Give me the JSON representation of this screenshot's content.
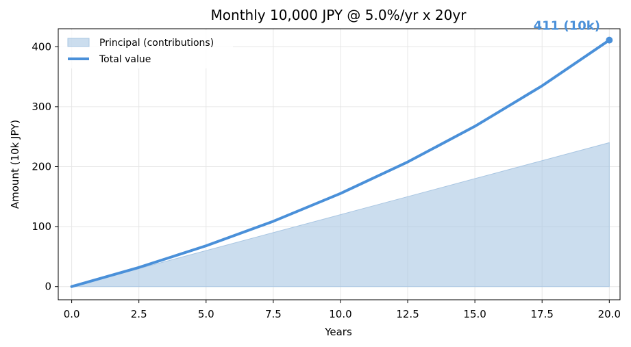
{
  "chart_data": {
    "type": "area",
    "title": "Monthly 10,000 JPY @ 5.0%/yr x 20yr",
    "xlabel": "Years",
    "ylabel": "Amount (10k JPY)",
    "xlim": [
      -0.5,
      20.4
    ],
    "ylim": [
      -22,
      430
    ],
    "xticks": [
      0.0,
      2.5,
      5.0,
      7.5,
      10.0,
      12.5,
      15.0,
      17.5,
      20.0
    ],
    "xtick_labels": [
      "0.0",
      "2.5",
      "5.0",
      "7.5",
      "10.0",
      "12.5",
      "15.0",
      "17.5",
      "20.0"
    ],
    "yticks": [
      0,
      100,
      200,
      300,
      400
    ],
    "ytick_labels": [
      "0",
      "100",
      "200",
      "300",
      "400"
    ],
    "grid": true,
    "legend_position": "top-left",
    "series": [
      {
        "name": "Principal (contributions)",
        "kind": "area",
        "color": "#a9c6e2",
        "x": [
          0,
          2.5,
          5,
          7.5,
          10,
          12.5,
          15,
          17.5,
          20
        ],
        "values": [
          0,
          30,
          60,
          90,
          120,
          150,
          180,
          210,
          240
        ]
      },
      {
        "name": "Total value",
        "kind": "line",
        "color": "#4a90d9",
        "x": [
          0,
          2.5,
          5,
          7.5,
          10,
          12.5,
          15,
          17.5,
          20
        ],
        "values": [
          0,
          31.9,
          68.0,
          108.9,
          155.3,
          207.8,
          267.3,
          334.8,
          411.0
        ]
      }
    ],
    "annotations": [
      {
        "text": "411 (10k)",
        "x": 20,
        "y": 411,
        "color": "#4a90d9"
      }
    ]
  }
}
